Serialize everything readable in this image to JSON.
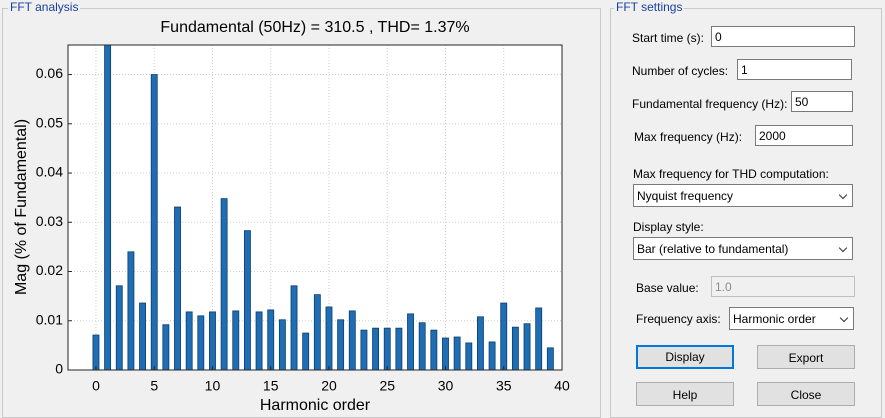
{
  "chart_data": {
    "type": "bar",
    "title": "Fundamental (50Hz) = 310.5 , THD= 1.37%",
    "xlabel": "Harmonic order",
    "ylabel": "Mag (% of Fundamental)",
    "x": [
      0,
      1,
      2,
      3,
      4,
      5,
      6,
      7,
      8,
      9,
      10,
      11,
      12,
      13,
      14,
      15,
      16,
      17,
      18,
      19,
      20,
      21,
      22,
      23,
      24,
      25,
      26,
      27,
      28,
      29,
      30,
      31,
      32,
      33,
      34,
      35,
      36,
      37,
      38,
      39
    ],
    "values": [
      0.0071,
      0.066,
      0.0171,
      0.024,
      0.0136,
      0.06,
      0.0092,
      0.0331,
      0.0118,
      0.011,
      0.0118,
      0.0348,
      0.012,
      0.0283,
      0.0118,
      0.0122,
      0.0102,
      0.0171,
      0.0075,
      0.0153,
      0.0128,
      0.0102,
      0.012,
      0.0081,
      0.0085,
      0.0085,
      0.0085,
      0.0114,
      0.0096,
      0.0081,
      0.0065,
      0.0067,
      0.0055,
      0.0108,
      0.0057,
      0.0136,
      0.0087,
      0.0094,
      0.0126,
      0.0045
    ],
    "color": "#1f6db3",
    "xlim": [
      -2.4,
      40
    ],
    "xticks": [
      0,
      5,
      10,
      15,
      20,
      25,
      30,
      35,
      40
    ],
    "ylim": [
      0,
      0.066
    ],
    "yticks": [
      0,
      0.01,
      0.02,
      0.03,
      0.04,
      0.05,
      0.06
    ],
    "grid": true
  },
  "analysis_panel": {
    "title": "FFT analysis"
  },
  "settings": {
    "title": "FFT settings",
    "start_time": {
      "label": "Start time (s):",
      "value": "0"
    },
    "cycles": {
      "label": "Number of cycles:",
      "value": "1"
    },
    "fund_freq": {
      "label": "Fundamental frequency (Hz):",
      "value": "50"
    },
    "max_freq": {
      "label": "Max frequency (Hz):",
      "value": "2000"
    },
    "thd_max": {
      "label": "Max frequency for THD computation:",
      "value": "Nyquist frequency"
    },
    "display_style": {
      "label": "Display style:",
      "value": "Bar (relative to fundamental)"
    },
    "base_value": {
      "label": "Base value:",
      "value": "1.0"
    },
    "freq_axis": {
      "label": "Frequency axis:",
      "value": "Harmonic order"
    },
    "buttons": [
      "Display",
      "Export",
      "Help",
      "Close"
    ]
  }
}
